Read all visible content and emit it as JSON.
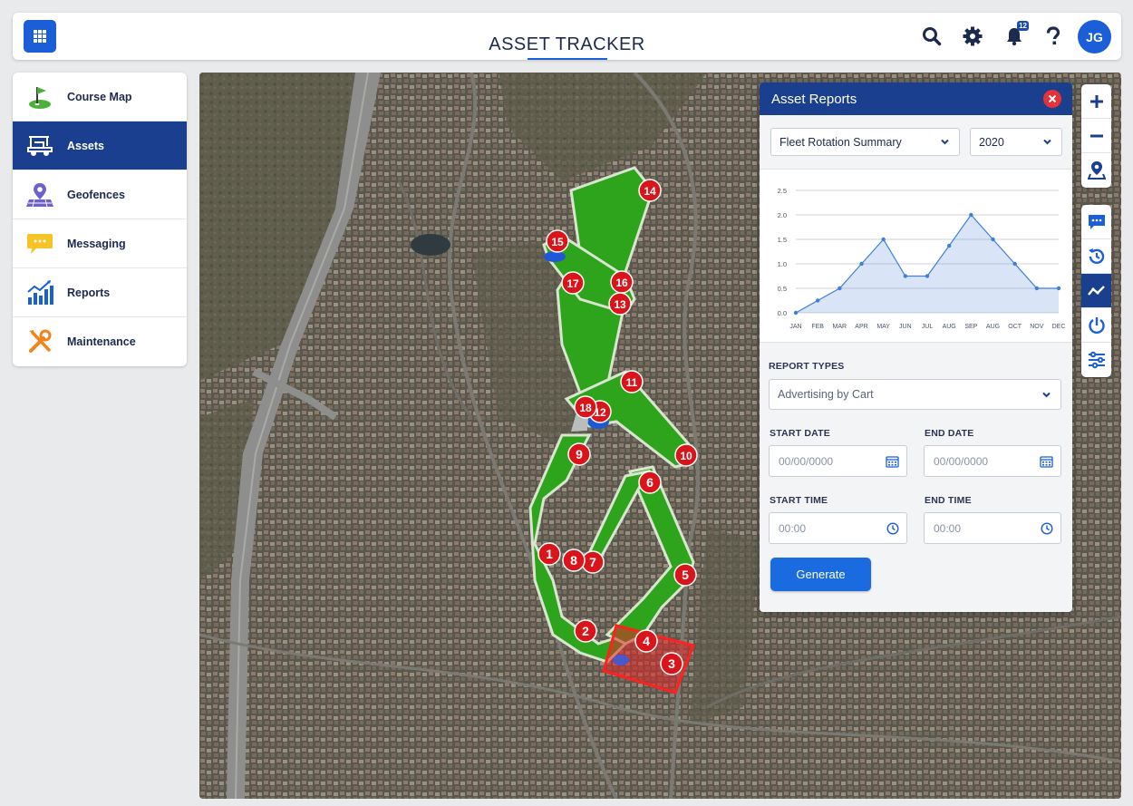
{
  "header": {
    "title": "ASSET TRACKER",
    "notification_count": "12",
    "user_initials": "JG",
    "accent_color": "#1a5ed8"
  },
  "sidebar": {
    "items": [
      {
        "label": "Course Map",
        "icon": "golf-flag-icon",
        "active": false
      },
      {
        "label": "Assets",
        "icon": "golf-cart-icon",
        "active": true
      },
      {
        "label": "Geofences",
        "icon": "geofence-pin-icon",
        "active": false
      },
      {
        "label": "Messaging",
        "icon": "chat-bubble-icon",
        "active": false
      },
      {
        "label": "Reports",
        "icon": "bar-chart-icon",
        "active": false
      },
      {
        "label": "Maintenance",
        "icon": "wrench-screwdriver-icon",
        "active": false
      }
    ]
  },
  "map": {
    "holes": [
      "1",
      "2",
      "3",
      "4",
      "5",
      "6",
      "7",
      "8",
      "9",
      "10",
      "11",
      "12",
      "13",
      "14",
      "15",
      "16",
      "17",
      "18"
    ],
    "controls": [
      "zoom-in-icon",
      "zoom-out-icon",
      "map-pin-icon",
      "message-icon",
      "history-icon",
      "trend-icon",
      "power-icon",
      "sliders-icon"
    ]
  },
  "panel": {
    "title": "Asset Reports",
    "report_select": "Fleet Rotation Summary",
    "year_select": "2020",
    "report_types_label": "REPORT TYPES",
    "report_type_value": "Advertising by Cart",
    "start_date_label": "START DATE",
    "end_date_label": "END DATE",
    "start_date_placeholder": "00/00/0000",
    "end_date_placeholder": "00/00/0000",
    "start_time_label": "START TIME",
    "end_time_label": "END TIME",
    "start_time_placeholder": "00:00",
    "end_time_placeholder": "00:00",
    "generate_label": "Generate"
  },
  "chart_data": {
    "type": "area",
    "categories": [
      "JAN",
      "FEB",
      "MAR",
      "APR",
      "MAY",
      "JUN",
      "JUL",
      "AUG",
      "SEP",
      "AUG",
      "OCT",
      "NOV",
      "DEC"
    ],
    "values": [
      0.0,
      0.25,
      0.5,
      1.0,
      1.5,
      0.75,
      0.75,
      1.37,
      2.0,
      1.5,
      1.0,
      0.5,
      0.5
    ],
    "yticks": [
      "0.0",
      "0.5",
      "1.0",
      "1.5",
      "2.0",
      "2.5"
    ],
    "ylim": [
      0,
      2.5
    ],
    "grid": true,
    "color": "#3f7fd6"
  }
}
